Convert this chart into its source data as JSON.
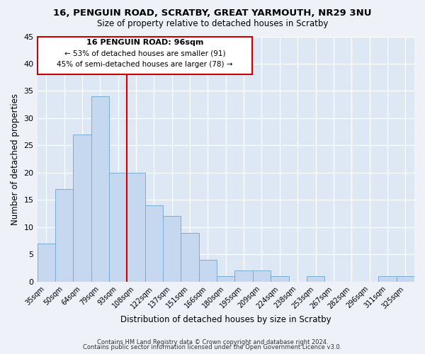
{
  "title": "16, PENGUIN ROAD, SCRATBY, GREAT YARMOUTH, NR29 3NU",
  "subtitle": "Size of property relative to detached houses in Scratby",
  "xlabel": "Distribution of detached houses by size in Scratby",
  "ylabel": "Number of detached properties",
  "footer_line1": "Contains HM Land Registry data © Crown copyright and database right 2024.",
  "footer_line2": "Contains public sector information licensed under the Open Government Licence v3.0.",
  "bar_labels": [
    "35sqm",
    "50sqm",
    "64sqm",
    "79sqm",
    "93sqm",
    "108sqm",
    "122sqm",
    "137sqm",
    "151sqm",
    "166sqm",
    "180sqm",
    "195sqm",
    "209sqm",
    "224sqm",
    "238sqm",
    "253sqm",
    "267sqm",
    "282sqm",
    "296sqm",
    "311sqm",
    "325sqm"
  ],
  "bar_values": [
    7,
    17,
    27,
    34,
    20,
    20,
    14,
    12,
    9,
    4,
    1,
    2,
    2,
    1,
    0,
    1,
    0,
    0,
    0,
    1,
    1
  ],
  "bar_color": "#c5d8ef",
  "bar_edge_color": "#7aadd4",
  "vline_color": "#cc0000",
  "vline_index": 3,
  "ylim": [
    0,
    45
  ],
  "yticks": [
    0,
    5,
    10,
    15,
    20,
    25,
    30,
    35,
    40,
    45
  ],
  "annotation_title": "16 PENGUIN ROAD: 96sqm",
  "annotation_line1": "← 53% of detached houses are smaller (91)",
  "annotation_line2": "45% of semi-detached houses are larger (78) →",
  "bg_color": "#eef2f8",
  "plot_bg_color": "#dde8f4"
}
